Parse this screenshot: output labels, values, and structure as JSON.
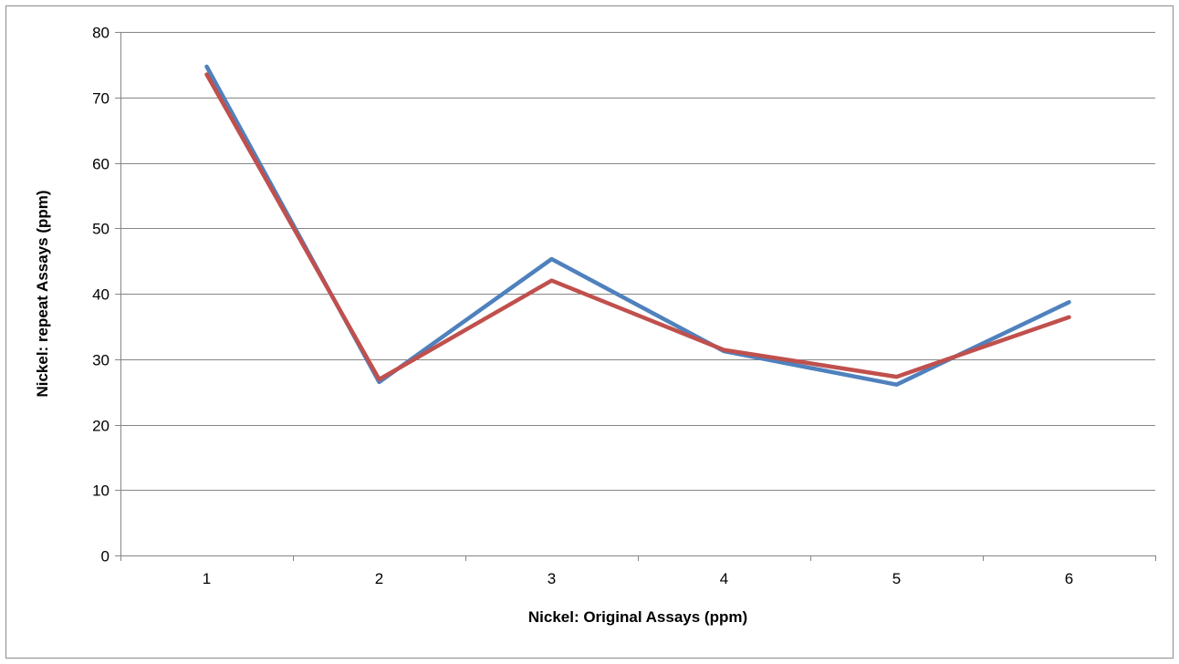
{
  "chart_data": {
    "type": "line",
    "title": "",
    "xlabel": "Nickel: Original Assays (ppm)",
    "ylabel": "Nickel: repeat Assays (ppm)",
    "categories": [
      "1",
      "2",
      "3",
      "4",
      "5",
      "6"
    ],
    "ylim": [
      0,
      80
    ],
    "yticks": [
      0,
      10,
      20,
      30,
      40,
      50,
      60,
      70,
      80
    ],
    "ytick_labels": [
      "0",
      "10",
      "20",
      "30",
      "40",
      "50",
      "60",
      "70",
      "80"
    ],
    "grid": "horizontal",
    "legend": "none",
    "series": [
      {
        "color": "#4F81BD",
        "values": [
          74.7,
          26.5,
          45.3,
          31.2,
          26.1,
          38.7
        ]
      },
      {
        "color": "#C0504D",
        "values": [
          73.5,
          26.9,
          42.0,
          31.4,
          27.3,
          36.4
        ]
      }
    ]
  }
}
